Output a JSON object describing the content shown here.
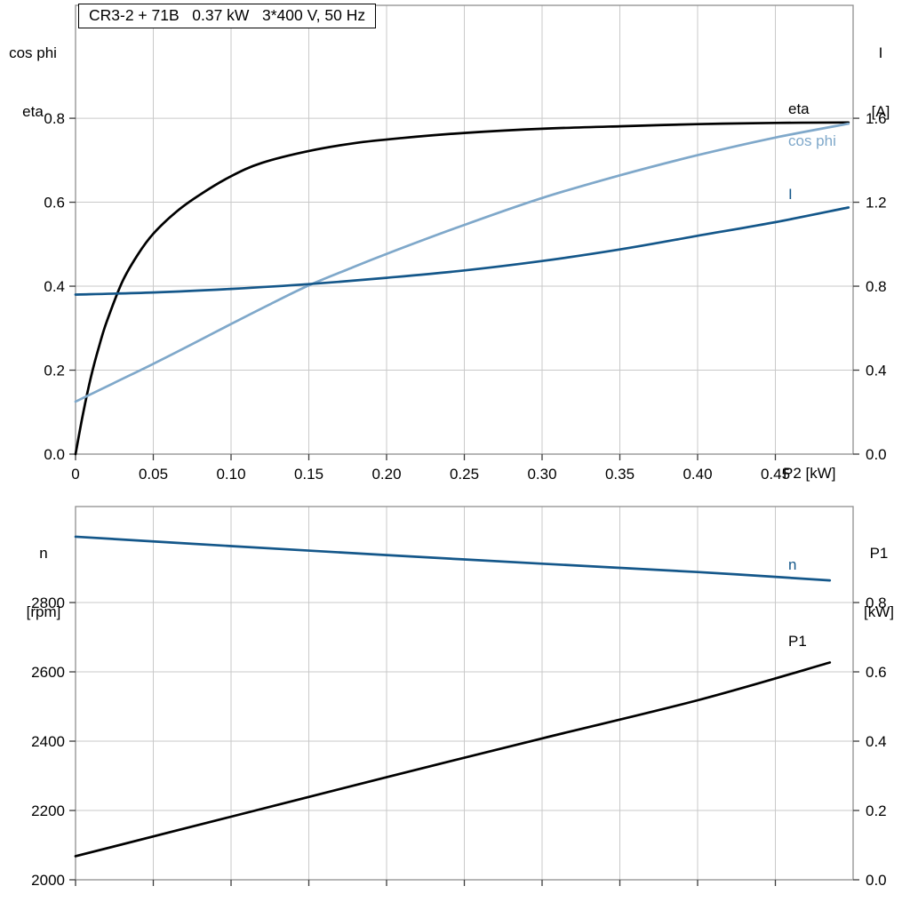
{
  "title_box": {
    "text": "CR3-2 + 71B   0.37 kW   3*400 V, 50 Hz"
  },
  "axes_corner_labels": {
    "top_left": [
      "cos phi",
      "eta"
    ],
    "top_right": [
      "I",
      "[A]"
    ],
    "bottom_left": [
      "n",
      "[rpm]"
    ],
    "bottom_right": [
      "P1",
      "[kW]"
    ]
  },
  "x_axis_end_label": "P2 [kW]",
  "colors": {
    "eta": "#000000",
    "cos_phi": "#7fa8ca",
    "current": "#14578a",
    "speed": "#14578a",
    "p1": "#000000",
    "grid": "#c9c9c9",
    "frame": "#8f8f8f"
  },
  "chart_data": [
    {
      "type": "line",
      "title": "CR3-2 + 71B   0.37 kW   3*400 V, 50 Hz",
      "xlabel": "P2 [kW]",
      "ylabel_left": "cos phi / eta",
      "ylabel_right": "I [A]",
      "grid": true,
      "legend_position": "curve-end-labels",
      "xlim": [
        0,
        0.5
      ],
      "ylim_left": [
        0,
        1.069
      ],
      "ylim_right": [
        0,
        2.138
      ],
      "x_ticks": [
        {
          "v": 0,
          "label": "0"
        },
        {
          "v": 0.05,
          "label": "0.05"
        },
        {
          "v": 0.1,
          "label": "0.10"
        },
        {
          "v": 0.15,
          "label": "0.15"
        },
        {
          "v": 0.2,
          "label": "0.20"
        },
        {
          "v": 0.25,
          "label": "0.25"
        },
        {
          "v": 0.3,
          "label": "0.30"
        },
        {
          "v": 0.35,
          "label": "0.35"
        },
        {
          "v": 0.4,
          "label": "0.40"
        },
        {
          "v": 0.45,
          "label": "0.45"
        }
      ],
      "left_ticks": [
        {
          "v": 0.0,
          "label": "0.0"
        },
        {
          "v": 0.2,
          "label": "0.2"
        },
        {
          "v": 0.4,
          "label": "0.4"
        },
        {
          "v": 0.6,
          "label": "0.6"
        },
        {
          "v": 0.8,
          "label": "0.8"
        }
      ],
      "right_ticks": [
        {
          "v": 0.0,
          "label": "0.0"
        },
        {
          "v": 0.4,
          "label": "0.4"
        },
        {
          "v": 0.8,
          "label": "0.8"
        },
        {
          "v": 1.2,
          "label": "1.2"
        },
        {
          "v": 1.6,
          "label": "1.6"
        }
      ],
      "series": [
        {
          "name": "eta",
          "axis": "left",
          "color": "#000000",
          "x": [
            0,
            0.005,
            0.01,
            0.015,
            0.02,
            0.03,
            0.04,
            0.05,
            0.065,
            0.08,
            0.1,
            0.12,
            0.15,
            0.18,
            0.21,
            0.25,
            0.3,
            0.35,
            0.4,
            0.45,
            0.497
          ],
          "y": [
            0,
            0.1,
            0.185,
            0.255,
            0.315,
            0.41,
            0.475,
            0.525,
            0.578,
            0.618,
            0.662,
            0.694,
            0.722,
            0.741,
            0.753,
            0.765,
            0.775,
            0.781,
            0.786,
            0.789,
            0.79
          ]
        },
        {
          "name": "cos phi",
          "axis": "left",
          "color": "#7fa8ca",
          "x": [
            0,
            0.025,
            0.05,
            0.075,
            0.1,
            0.125,
            0.15,
            0.175,
            0.2,
            0.25,
            0.3,
            0.35,
            0.4,
            0.45,
            0.497
          ],
          "y": [
            0.125,
            0.17,
            0.215,
            0.262,
            0.31,
            0.357,
            0.402,
            0.44,
            0.477,
            0.546,
            0.61,
            0.664,
            0.712,
            0.754,
            0.787
          ]
        },
        {
          "name": "I",
          "axis": "right",
          "color": "#14578a",
          "x": [
            0,
            0.05,
            0.1,
            0.15,
            0.2,
            0.25,
            0.3,
            0.35,
            0.4,
            0.45,
            0.497
          ],
          "y": [
            0.76,
            0.77,
            0.787,
            0.81,
            0.84,
            0.875,
            0.92,
            0.975,
            1.04,
            1.105,
            1.175
          ]
        }
      ]
    },
    {
      "type": "line",
      "title": "",
      "xlabel": "",
      "ylabel_left": "n [rpm]",
      "ylabel_right": "P1 [kW]",
      "grid": true,
      "legend_position": "curve-end-labels",
      "xlim": [
        0,
        0.5
      ],
      "ylim_left": [
        2000,
        3077
      ],
      "ylim_right": [
        0,
        1.077
      ],
      "x_ticks": [
        {
          "v": 0,
          "label": ""
        },
        {
          "v": 0.05,
          "label": ""
        },
        {
          "v": 0.1,
          "label": ""
        },
        {
          "v": 0.15,
          "label": ""
        },
        {
          "v": 0.2,
          "label": ""
        },
        {
          "v": 0.25,
          "label": ""
        },
        {
          "v": 0.3,
          "label": ""
        },
        {
          "v": 0.35,
          "label": ""
        },
        {
          "v": 0.4,
          "label": ""
        },
        {
          "v": 0.45,
          "label": ""
        }
      ],
      "left_ticks": [
        {
          "v": 2000,
          "label": "2000"
        },
        {
          "v": 2200,
          "label": "2200"
        },
        {
          "v": 2400,
          "label": "2400"
        },
        {
          "v": 2600,
          "label": "2600"
        },
        {
          "v": 2800,
          "label": "2800"
        }
      ],
      "right_ticks": [
        {
          "v": 0.0,
          "label": "0.0"
        },
        {
          "v": 0.2,
          "label": "0.2"
        },
        {
          "v": 0.4,
          "label": "0.4"
        },
        {
          "v": 0.6,
          "label": "0.6"
        },
        {
          "v": 0.8,
          "label": "0.8"
        }
      ],
      "series": [
        {
          "name": "n",
          "axis": "left",
          "color": "#14578a",
          "x": [
            0,
            0.1,
            0.2,
            0.3,
            0.4,
            0.485
          ],
          "y": [
            2990,
            2963,
            2937,
            2912,
            2888,
            2864
          ]
        },
        {
          "name": "P1",
          "axis": "right",
          "color": "#000000",
          "x": [
            0,
            0.1,
            0.2,
            0.3,
            0.4,
            0.485
          ],
          "y": [
            0.068,
            0.182,
            0.296,
            0.408,
            0.518,
            0.627
          ]
        }
      ]
    }
  ]
}
